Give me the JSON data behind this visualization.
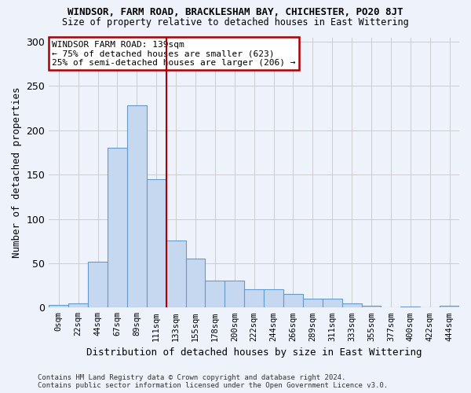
{
  "title": "WINDSOR, FARM ROAD, BRACKLESHAM BAY, CHICHESTER, PO20 8JT",
  "subtitle": "Size of property relative to detached houses in East Wittering",
  "xlabel": "Distribution of detached houses by size in East Wittering",
  "ylabel": "Number of detached properties",
  "footer_line1": "Contains HM Land Registry data © Crown copyright and database right 2024.",
  "footer_line2": "Contains public sector information licensed under the Open Government Licence v3.0.",
  "bin_labels": [
    "0sqm",
    "22sqm",
    "44sqm",
    "67sqm",
    "89sqm",
    "111sqm",
    "133sqm",
    "155sqm",
    "178sqm",
    "200sqm",
    "222sqm",
    "244sqm",
    "266sqm",
    "289sqm",
    "311sqm",
    "333sqm",
    "355sqm",
    "377sqm",
    "400sqm",
    "422sqm",
    "444sqm"
  ],
  "bar_heights": [
    3,
    5,
    52,
    180,
    228,
    145,
    76,
    55,
    30,
    30,
    21,
    21,
    15,
    10,
    10,
    5,
    2,
    0,
    1,
    0,
    2
  ],
  "bar_color": "#c5d8f0",
  "bar_edge_color": "#6699cc",
  "background_color": "#eef2fb",
  "grid_color": "#cccccc",
  "annotation_text": "WINDSOR FARM ROAD: 139sqm\n← 75% of detached houses are smaller (623)\n25% of semi-detached houses are larger (206) →",
  "annotation_box_color": "#ffffff",
  "annotation_border_color": "#aa0000",
  "vline_x_bin": 6,
  "vline_color": "#aa0000",
  "ylim": [
    0,
    305
  ],
  "yticks": [
    0,
    50,
    100,
    150,
    200,
    250,
    300
  ]
}
